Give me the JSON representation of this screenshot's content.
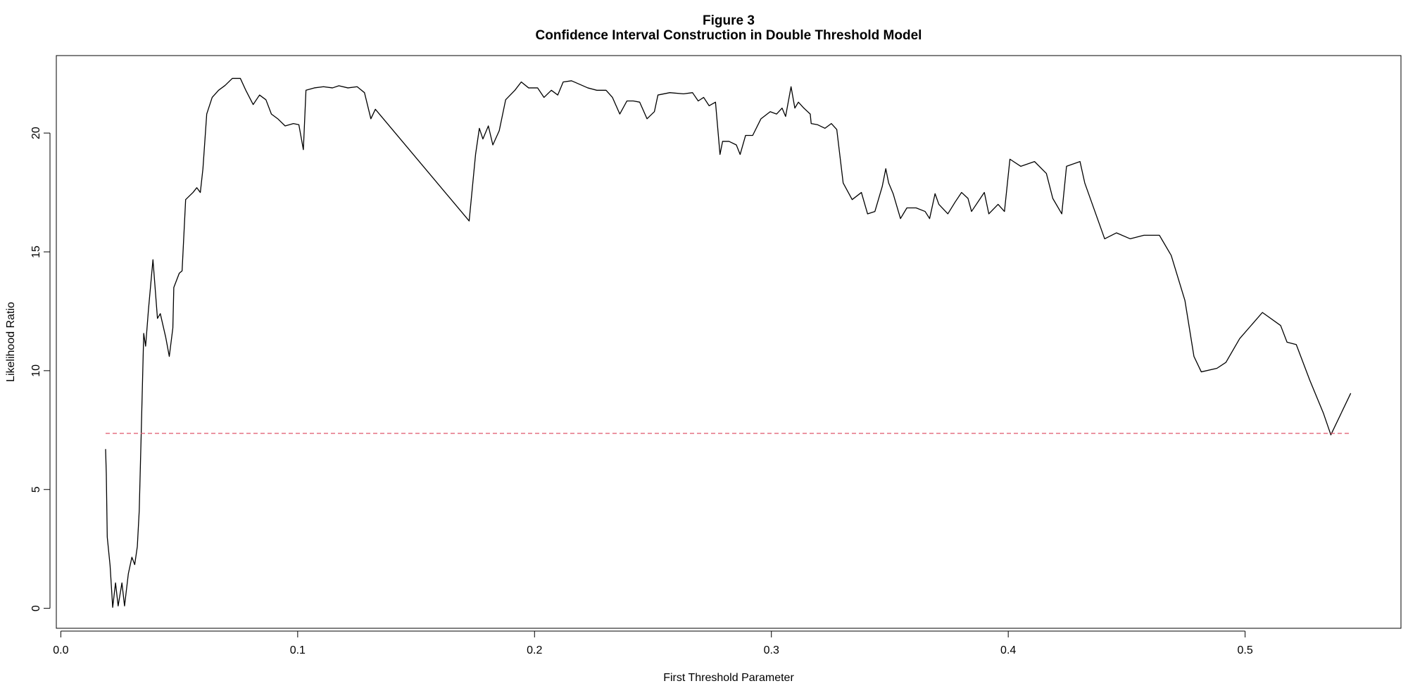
{
  "chart_data": {
    "type": "line",
    "title": "Figure 3",
    "subtitle": "Confidence Interval Construction in Double Threshold Model",
    "x_label": "First Threshold Parameter",
    "y_label": "Likelihood Ratio",
    "xlim": [
      -0.0019,
      0.5658
    ],
    "ylim": [
      -0.84,
      23.26
    ],
    "xticks": [
      {
        "value": 0,
        "label": "0.0"
      },
      0.1,
      0.2,
      0.3,
      0.4,
      0.5
    ],
    "yticks": [
      0,
      5,
      10,
      15,
      20
    ],
    "grid": false,
    "series": [
      {
        "name": "Likelihood Ratio",
        "color": "#000000",
        "x": [
          0.0189,
          0.0192,
          0.0196,
          0.0208,
          0.0219,
          0.0231,
          0.0242,
          0.0258,
          0.0269,
          0.0285,
          0.03,
          0.0312,
          0.0323,
          0.0331,
          0.0339,
          0.035,
          0.0358,
          0.037,
          0.0389,
          0.0408,
          0.042,
          0.0443,
          0.0458,
          0.0473,
          0.0477,
          0.05,
          0.0512,
          0.0527,
          0.0558,
          0.0574,
          0.0589,
          0.06,
          0.0616,
          0.0639,
          0.0666,
          0.0693,
          0.0724,
          0.0758,
          0.0781,
          0.0812,
          0.0839,
          0.0866,
          0.0889,
          0.0916,
          0.0947,
          0.0982,
          0.1005,
          0.1024,
          0.1035,
          0.107,
          0.1109,
          0.1147,
          0.1174,
          0.1212,
          0.1251,
          0.1282,
          0.1309,
          0.1328,
          0.1724,
          0.1751,
          0.1767,
          0.1782,
          0.1805,
          0.1824,
          0.1851,
          0.1878,
          0.1917,
          0.1944,
          0.1975,
          0.2013,
          0.204,
          0.2071,
          0.2098,
          0.2121,
          0.2156,
          0.2186,
          0.2225,
          0.2263,
          0.2302,
          0.2329,
          0.236,
          0.239,
          0.2417,
          0.2444,
          0.2475,
          0.2506,
          0.2521,
          0.2571,
          0.2629,
          0.2667,
          0.2691,
          0.2714,
          0.2737,
          0.2764,
          0.2783,
          0.2794,
          0.2821,
          0.2852,
          0.2868,
          0.2891,
          0.2921,
          0.2956,
          0.2995,
          0.3022,
          0.3045,
          0.306,
          0.3083,
          0.3099,
          0.3114,
          0.3137,
          0.3164,
          0.3168,
          0.3195,
          0.3226,
          0.3253,
          0.3276,
          0.3303,
          0.3341,
          0.338,
          0.3406,
          0.3437,
          0.3468,
          0.3483,
          0.3495,
          0.3514,
          0.3545,
          0.3572,
          0.3611,
          0.3649,
          0.3668,
          0.3691,
          0.3707,
          0.3745,
          0.3776,
          0.3803,
          0.383,
          0.3845,
          0.3899,
          0.3918,
          0.3957,
          0.3984,
          0.4007,
          0.4053,
          0.4111,
          0.4161,
          0.4188,
          0.4226,
          0.4246,
          0.4303,
          0.4323,
          0.4407,
          0.4457,
          0.4515,
          0.4573,
          0.4638,
          0.4688,
          0.4746,
          0.4784,
          0.4815,
          0.4881,
          0.4919,
          0.4977,
          0.5073,
          0.515,
          0.5177,
          0.5216,
          0.5273,
          0.5331,
          0.5362,
          0.5446
        ],
        "values": [
          6.7,
          5.67,
          3.0,
          1.8,
          0.04,
          1.07,
          0.1,
          1.07,
          0.1,
          1.45,
          2.15,
          1.84,
          2.6,
          4.1,
          7.2,
          11.57,
          11.03,
          12.57,
          14.67,
          12.2,
          12.4,
          11.4,
          10.6,
          11.8,
          13.5,
          14.1,
          14.2,
          17.2,
          17.5,
          17.7,
          17.5,
          18.5,
          20.8,
          21.5,
          21.8,
          22.0,
          22.3,
          22.3,
          21.8,
          21.2,
          21.6,
          21.4,
          20.8,
          20.6,
          20.3,
          20.4,
          20.35,
          19.3,
          21.8,
          21.9,
          21.95,
          21.9,
          21.99,
          21.9,
          21.95,
          21.7,
          20.6,
          21.0,
          16.3,
          19.1,
          20.2,
          19.75,
          20.3,
          19.5,
          20.1,
          21.4,
          21.8,
          22.15,
          21.9,
          21.9,
          21.5,
          21.8,
          21.6,
          22.15,
          22.2,
          22.07,
          21.9,
          21.8,
          21.8,
          21.5,
          20.8,
          21.35,
          21.35,
          21.3,
          20.6,
          20.9,
          21.6,
          21.7,
          21.65,
          21.7,
          21.35,
          21.5,
          21.15,
          21.3,
          19.1,
          19.65,
          19.65,
          19.5,
          19.1,
          19.9,
          19.9,
          20.6,
          20.9,
          20.8,
          21.05,
          20.7,
          21.95,
          21.05,
          21.3,
          21.05,
          20.8,
          20.4,
          20.35,
          20.2,
          20.4,
          20.15,
          17.9,
          17.2,
          17.5,
          16.6,
          16.7,
          17.75,
          18.5,
          17.9,
          17.45,
          16.4,
          16.85,
          16.85,
          16.7,
          16.4,
          17.45,
          17.0,
          16.6,
          17.1,
          17.5,
          17.25,
          16.7,
          17.5,
          16.6,
          17.0,
          16.7,
          18.9,
          18.6,
          18.8,
          18.3,
          17.25,
          16.6,
          18.6,
          18.8,
          17.9,
          15.55,
          15.8,
          15.55,
          15.7,
          15.7,
          14.85,
          12.95,
          10.6,
          9.95,
          10.1,
          10.35,
          11.35,
          12.45,
          11.9,
          11.2,
          11.1,
          9.6,
          8.2,
          7.3,
          9.05
        ]
      }
    ],
    "threshold": {
      "value": 7.36,
      "color": "#df536b"
    }
  }
}
